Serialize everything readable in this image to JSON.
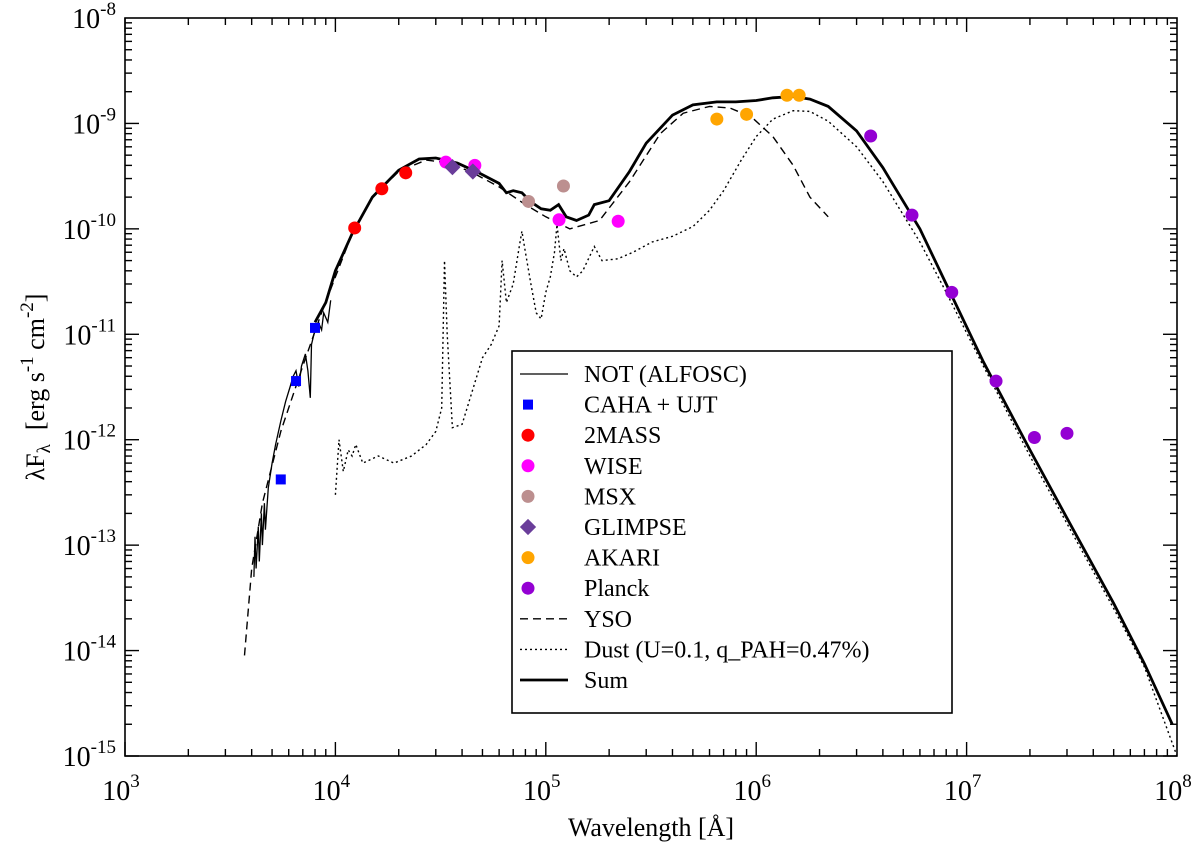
{
  "chart_data": {
    "type": "scatter",
    "title": "",
    "xlabel": "Wavelength  [Å]",
    "ylabel": {
      "lambda": "λ",
      "F": "F",
      "sub": "λ",
      "units_prefix": "[erg s",
      "exp1": "-1",
      "units_mid": " cm",
      "exp2": "-2",
      "units_suffix": "]"
    },
    "x_scale": "log",
    "y_scale": "log",
    "xlim": [
      1000,
      100000000
    ],
    "ylim": [
      1e-15,
      1e-08
    ],
    "grid": false,
    "legend_placement": "center-right",
    "x_ticks": [
      {
        "value": 1000,
        "base": "10",
        "exp": "3"
      },
      {
        "value": 10000,
        "base": "10",
        "exp": "4"
      },
      {
        "value": 100000,
        "base": "10",
        "exp": "5"
      },
      {
        "value": 1000000,
        "base": "10",
        "exp": "6"
      },
      {
        "value": 10000000,
        "base": "10",
        "exp": "7"
      },
      {
        "value": 100000000,
        "base": "10",
        "exp": "8"
      }
    ],
    "y_ticks": [
      {
        "value": 1e-08,
        "base": "10",
        "exp": "-8"
      },
      {
        "value": 1e-09,
        "base": "10",
        "exp": "-9"
      },
      {
        "value": 1e-10,
        "base": "10",
        "exp": "-10"
      },
      {
        "value": 1e-11,
        "base": "10",
        "exp": "-11"
      },
      {
        "value": 1e-12,
        "base": "10",
        "exp": "-12"
      },
      {
        "value": 1e-13,
        "base": "10",
        "exp": "-13"
      },
      {
        "value": 1e-14,
        "base": "10",
        "exp": "-14"
      },
      {
        "value": 1e-15,
        "base": "10",
        "exp": "-15"
      }
    ],
    "point_series": [
      {
        "name": "CAHA + UJT",
        "color": "#0000ff",
        "marker": "square",
        "points": [
          [
            5500,
            4.2e-13
          ],
          [
            6500,
            3.6e-12
          ],
          [
            8000,
            1.15e-11
          ]
        ]
      },
      {
        "name": "2MASS",
        "color": "#ff0000",
        "marker": "circle",
        "points": [
          [
            12350,
            1.02e-10
          ],
          [
            16620,
            2.4e-10
          ],
          [
            21590,
            3.4e-10
          ]
        ]
      },
      {
        "name": "WISE",
        "color": "#ff00ff",
        "marker": "circle",
        "points": [
          [
            33500,
            4.3e-10
          ],
          [
            46000,
            4e-10
          ],
          [
            115600,
            1.22e-10
          ],
          [
            220800,
            1.18e-10
          ]
        ]
      },
      {
        "name": "MSX",
        "color": "#bc8f8f",
        "marker": "circle",
        "points": [
          [
            82800,
            1.82e-10
          ],
          [
            121300,
            2.55e-10
          ]
        ]
      },
      {
        "name": "GLIMPSE",
        "color": "#6a3d9a",
        "marker": "diamond",
        "points": [
          [
            36000,
            3.85e-10
          ],
          [
            45000,
            3.5e-10
          ]
        ]
      },
      {
        "name": "AKARI",
        "color": "#ffa500",
        "marker": "circle",
        "points": [
          [
            650000,
            1.1e-09
          ],
          [
            900000,
            1.22e-09
          ],
          [
            1400000,
            1.85e-09
          ],
          [
            1600000,
            1.85e-09
          ]
        ]
      },
      {
        "name": "Planck",
        "color": "#9400d3",
        "marker": "circle",
        "points": [
          [
            3500000,
            7.6e-10
          ],
          [
            5500000,
            1.35e-10
          ],
          [
            8500000,
            2.5e-11
          ],
          [
            13800000,
            3.6e-12
          ],
          [
            21000000,
            1.05e-12
          ],
          [
            30000000,
            1.15e-12
          ]
        ]
      }
    ],
    "line_series": [
      {
        "name": "NOT (ALFOSC)",
        "style": "solid-thin",
        "points": [
          [
            4100,
            5e-14
          ],
          [
            4150,
            1.2e-13
          ],
          [
            4200,
            6e-14
          ],
          [
            4300,
            1.5e-13
          ],
          [
            4350,
            7e-14
          ],
          [
            4450,
            2e-13
          ],
          [
            4500,
            1e-13
          ],
          [
            4600,
            2.5e-13
          ],
          [
            4650,
            1.4e-13
          ],
          [
            4800,
            3.5e-13
          ],
          [
            5000,
            6e-13
          ],
          [
            5200,
            9e-13
          ],
          [
            5500,
            1.5e-12
          ],
          [
            5800,
            2.3e-12
          ],
          [
            6100,
            3.2e-12
          ],
          [
            6300,
            4e-12
          ],
          [
            6500,
            4.5e-12
          ],
          [
            6700,
            3.2e-12
          ],
          [
            6900,
            5e-12
          ],
          [
            7200,
            6.5e-12
          ],
          [
            7400,
            4.5e-12
          ],
          [
            7600,
            2.5e-12
          ],
          [
            7700,
            8e-12
          ],
          [
            8000,
            1.1e-11
          ],
          [
            8300,
            1.3e-11
          ],
          [
            8600,
            1.1e-11
          ],
          [
            8800,
            1.6e-11
          ],
          [
            9200,
            1.3e-11
          ],
          [
            9500,
            2.1e-11
          ]
        ]
      },
      {
        "name": "YSO",
        "style": "dashed",
        "points": [
          [
            3700,
            9e-15
          ],
          [
            4000,
            6e-14
          ],
          [
            4500,
            2.5e-13
          ],
          [
            5500,
            1.2e-12
          ],
          [
            7000,
            5e-12
          ],
          [
            8500,
            1.5e-11
          ],
          [
            10000,
            3.5e-11
          ],
          [
            12000,
            9e-11
          ],
          [
            15000,
            2e-10
          ],
          [
            20000,
            3.5e-10
          ],
          [
            27000,
            4.5e-10
          ],
          [
            35000,
            4.2e-10
          ],
          [
            45000,
            3.4e-10
          ],
          [
            60000,
            2.5e-10
          ],
          [
            80000,
            1.7e-10
          ],
          [
            100000,
            1.3e-10
          ],
          [
            130000,
            1e-10
          ],
          [
            180000,
            1.2e-10
          ],
          [
            250000,
            2.8e-10
          ],
          [
            350000,
            8e-10
          ],
          [
            450000,
            1.25e-09
          ],
          [
            600000,
            1.45e-09
          ],
          [
            750000,
            1.4e-09
          ],
          [
            950000,
            1.15e-09
          ],
          [
            1200000,
            7.5e-10
          ],
          [
            1500000,
            4e-10
          ],
          [
            1800000,
            2e-10
          ],
          [
            2200000,
            1.3e-10
          ]
        ]
      },
      {
        "name": "Dust  (U=0.1, q_PAH=0.47%)",
        "style": "dotted",
        "points": [
          [
            10000,
            3e-13
          ],
          [
            10400,
            1e-12
          ],
          [
            10900,
            5e-13
          ],
          [
            11500,
            8e-13
          ],
          [
            12000,
            7e-13
          ],
          [
            12500,
            9e-13
          ],
          [
            13500,
            6e-13
          ],
          [
            16000,
            7e-13
          ],
          [
            19000,
            6e-13
          ],
          [
            23000,
            7e-13
          ],
          [
            27000,
            9e-13
          ],
          [
            30000,
            1.2e-12
          ],
          [
            32000,
            2e-12
          ],
          [
            33000,
            5e-11
          ],
          [
            34000,
            1e-11
          ],
          [
            36000,
            1.3e-12
          ],
          [
            40000,
            1.4e-12
          ],
          [
            45000,
            3e-12
          ],
          [
            50000,
            6e-12
          ],
          [
            55000,
            8e-12
          ],
          [
            60000,
            1.2e-11
          ],
          [
            62000,
            5e-11
          ],
          [
            65000,
            2e-11
          ],
          [
            70000,
            3e-11
          ],
          [
            75000,
            7e-11
          ],
          [
            77000,
            9.5e-11
          ],
          [
            80000,
            6e-11
          ],
          [
            85000,
            3e-11
          ],
          [
            90000,
            1.6e-11
          ],
          [
            95000,
            1.4e-11
          ],
          [
            100000,
            2.5e-11
          ],
          [
            105000,
            3.5e-11
          ],
          [
            110000,
            6e-11
          ],
          [
            113000,
            1.1e-10
          ],
          [
            118000,
            5e-11
          ],
          [
            122000,
            6.5e-11
          ],
          [
            130000,
            4e-11
          ],
          [
            140000,
            3.5e-11
          ],
          [
            150000,
            4e-11
          ],
          [
            165000,
            6e-11
          ],
          [
            170000,
            6.8e-11
          ],
          [
            185000,
            5e-11
          ],
          [
            220000,
            5.2e-11
          ],
          [
            260000,
            6e-11
          ],
          [
            320000,
            7.5e-11
          ],
          [
            400000,
            8.5e-11
          ],
          [
            500000,
            1.05e-10
          ],
          [
            600000,
            1.5e-10
          ],
          [
            700000,
            2.3e-10
          ],
          [
            850000,
            4.5e-10
          ],
          [
            1000000,
            7.5e-10
          ],
          [
            1200000,
            1.1e-09
          ],
          [
            1500000,
            1.32e-09
          ],
          [
            1800000,
            1.3e-09
          ],
          [
            2200000,
            1.05e-09
          ],
          [
            3000000,
            6e-10
          ],
          [
            4000000,
            2.8e-10
          ],
          [
            6000000,
            7.5e-11
          ],
          [
            8000000,
            2.5e-11
          ],
          [
            12000000,
            5e-12
          ],
          [
            20000000,
            7e-13
          ],
          [
            30000000,
            1.6e-13
          ],
          [
            50000000,
            2.5e-14
          ],
          [
            70000000,
            7e-15
          ],
          [
            100000000,
            1e-15
          ]
        ]
      },
      {
        "name": "Sum",
        "style": "solid-thick",
        "points": [
          [
            8000,
            1.3e-11
          ],
          [
            9000,
            2e-11
          ],
          [
            10000,
            4e-11
          ],
          [
            12000,
            9e-11
          ],
          [
            15000,
            2e-10
          ],
          [
            20000,
            3.6e-10
          ],
          [
            25000,
            4.6e-10
          ],
          [
            30000,
            4.7e-10
          ],
          [
            38000,
            4.2e-10
          ],
          [
            48000,
            3.4e-10
          ],
          [
            60000,
            2.7e-10
          ],
          [
            65000,
            2.2e-10
          ],
          [
            70000,
            2.3e-10
          ],
          [
            77000,
            2.2e-10
          ],
          [
            85000,
            1.8e-10
          ],
          [
            95000,
            1.55e-10
          ],
          [
            105000,
            1.5e-10
          ],
          [
            115000,
            1.7e-10
          ],
          [
            125000,
            1.3e-10
          ],
          [
            140000,
            1.2e-10
          ],
          [
            160000,
            1.35e-10
          ],
          [
            170000,
            1.7e-10
          ],
          [
            200000,
            1.85e-10
          ],
          [
            250000,
            3.5e-10
          ],
          [
            300000,
            6.5e-10
          ],
          [
            400000,
            1.2e-09
          ],
          [
            500000,
            1.5e-09
          ],
          [
            650000,
            1.6e-09
          ],
          [
            800000,
            1.6e-09
          ],
          [
            1000000,
            1.65e-09
          ],
          [
            1200000,
            1.75e-09
          ],
          [
            1500000,
            1.8e-09
          ],
          [
            1800000,
            1.7e-09
          ],
          [
            2200000,
            1.45e-09
          ],
          [
            3000000,
            8.5e-10
          ],
          [
            4000000,
            3.8e-10
          ],
          [
            6000000,
            1e-10
          ],
          [
            8000000,
            3e-11
          ],
          [
            12000000,
            5.5e-12
          ],
          [
            20000000,
            8e-13
          ],
          [
            30000000,
            1.8e-13
          ],
          [
            50000000,
            2.8e-14
          ],
          [
            70000000,
            7.5e-15
          ],
          [
            95000000,
            2e-15
          ]
        ]
      }
    ],
    "legend_entries": [
      {
        "label": "NOT (ALFOSC)",
        "kind": "line",
        "style": "solid-thin"
      },
      {
        "label": "CAHA + UJT",
        "kind": "marker",
        "marker": "square",
        "color": "#0000ff"
      },
      {
        "label": "2MASS",
        "kind": "marker",
        "marker": "circle",
        "color": "#ff0000"
      },
      {
        "label": "WISE",
        "kind": "marker",
        "marker": "circle",
        "color": "#ff00ff"
      },
      {
        "label": "MSX",
        "kind": "marker",
        "marker": "circle",
        "color": "#bc8f8f"
      },
      {
        "label": "GLIMPSE",
        "kind": "marker",
        "marker": "diamond",
        "color": "#6a3d9a"
      },
      {
        "label": "AKARI",
        "kind": "marker",
        "marker": "circle",
        "color": "#ffa500"
      },
      {
        "label": "Planck",
        "kind": "marker",
        "marker": "circle",
        "color": "#9400d3"
      },
      {
        "label": "YSO",
        "kind": "line",
        "style": "dashed"
      },
      {
        "label": "Dust  (U=0.1, q_PAH=0.47%)",
        "kind": "line",
        "style": "dotted"
      },
      {
        "label": "Sum",
        "kind": "line",
        "style": "solid-thick"
      }
    ]
  }
}
